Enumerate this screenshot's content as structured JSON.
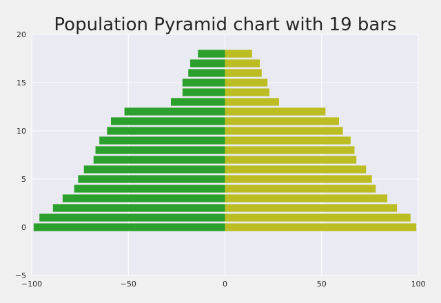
{
  "chart_data": {
    "type": "bar",
    "orientation": "horizontal",
    "title": "Population Pyramid chart with 19 bars",
    "xlabel": "",
    "ylabel": "",
    "xlim": [
      -100,
      100
    ],
    "ylim": [
      -5,
      20
    ],
    "xticks": [
      -100,
      -50,
      0,
      50,
      100
    ],
    "yticks": [
      -5,
      0,
      5,
      10,
      15,
      20
    ],
    "xtick_labels": [
      "−100",
      "−50",
      "0",
      "50",
      "100"
    ],
    "ytick_labels": [
      "−5",
      "0",
      "5",
      "10",
      "15",
      "20"
    ],
    "grid": true,
    "y": [
      0,
      1,
      2,
      3,
      4,
      5,
      6,
      7,
      8,
      9,
      10,
      11,
      12,
      13,
      14,
      15,
      16,
      17,
      18
    ],
    "series": [
      {
        "side": "left",
        "color": "#2ca02c",
        "values": [
          -99,
          -96,
          -89,
          -84,
          -78,
          -76,
          -73,
          -68,
          -67,
          -65,
          -61,
          -59,
          -52,
          -28,
          -22,
          -22,
          -19,
          -18,
          -14
        ]
      },
      {
        "side": "right",
        "color": "#bcbd22",
        "values": [
          99,
          96,
          89,
          84,
          78,
          76,
          73,
          68,
          67,
          65,
          61,
          59,
          52,
          28,
          23,
          22,
          19,
          18,
          14
        ]
      }
    ],
    "colors": {
      "background": "#eaeaf2",
      "page": "#f0f0f0",
      "grid": "#ffffff"
    }
  }
}
